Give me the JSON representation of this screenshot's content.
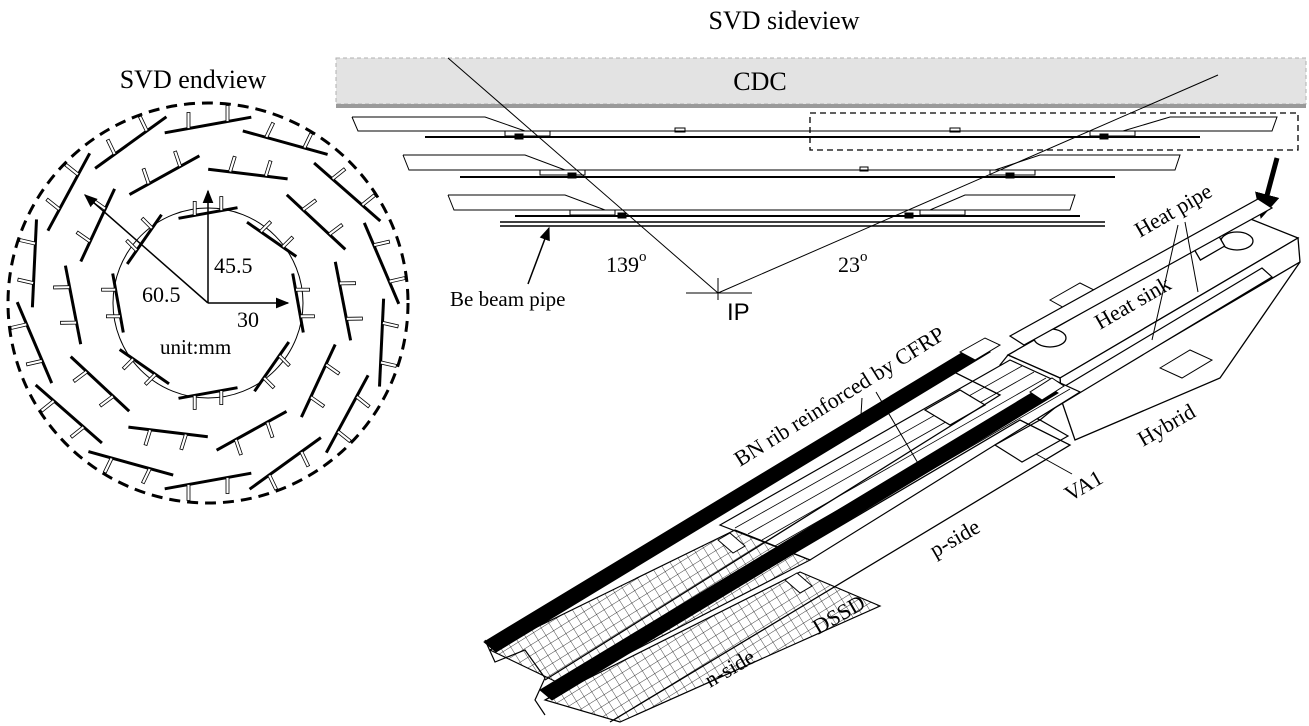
{
  "endview": {
    "title": "SVD endview",
    "radius_outer": "60.5",
    "radius_mid": "45.5",
    "radius_inner": "30",
    "unit": "unit:mm"
  },
  "sideview": {
    "title": "SVD sideview",
    "cdc": "CDC",
    "angle_backward": "139",
    "angle_forward": "23",
    "angle_unit": "o",
    "ip": "IP",
    "beam_pipe": "Be beam pipe"
  },
  "ladder": {
    "heat_pipe": "Heat pipe",
    "heat_sink": "Heat sink",
    "rib": "BN rib reinforced by CFRP",
    "hybrid": "Hybrid",
    "va1": "VA1",
    "p_side": "p-side",
    "dssd": "DSSD",
    "n_side": "n-side"
  },
  "colors": {
    "ink": "#000000",
    "cdc_fill": "#e3e3e3",
    "cdc_edge": "#9a9a9a"
  }
}
